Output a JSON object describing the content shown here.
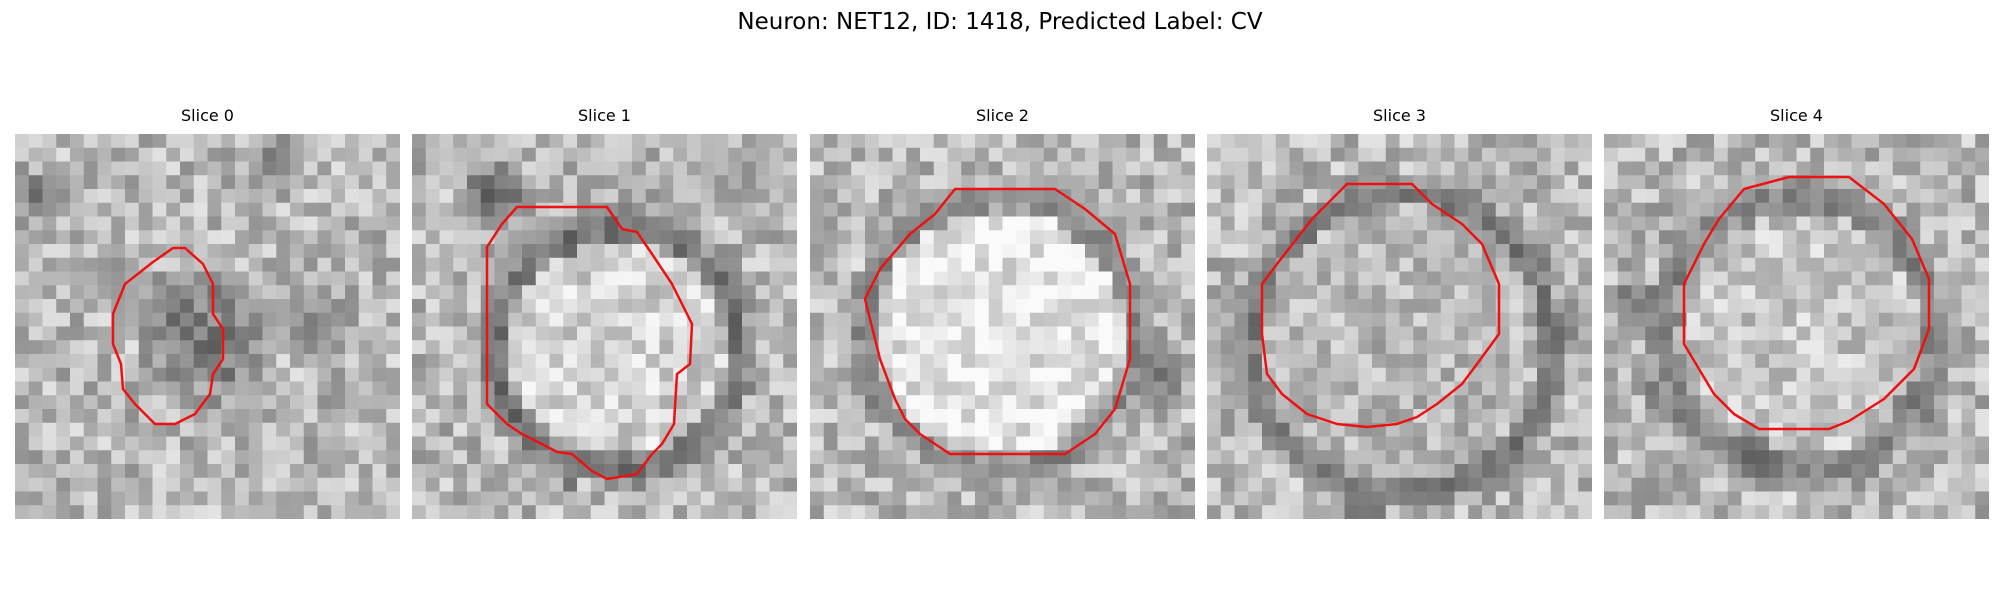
{
  "figure": {
    "title": "Neuron: NET12, ID: 1418, Predicted Label: CV",
    "contour_color": "#ee1111",
    "slices": [
      {
        "title": "Slice 0"
      },
      {
        "title": "Slice 1"
      },
      {
        "title": "Slice 2"
      },
      {
        "title": "Slice 3"
      },
      {
        "title": "Slice 4"
      }
    ]
  }
}
